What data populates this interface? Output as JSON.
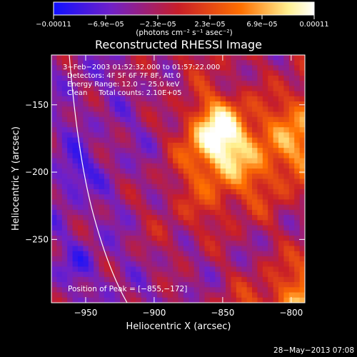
{
  "chart_data": {
    "type": "heatmap",
    "title": "Reconstructed RHESSI Image",
    "xlabel": "Heliocentric X (arcsec)",
    "ylabel": "Heliocentric Y (arcsec)",
    "xlim": [
      -975,
      -790
    ],
    "ylim": [
      -297,
      -113
    ],
    "x_ticks": [
      -950,
      -900,
      -850,
      -800
    ],
    "x_tick_labels": [
      "−950",
      "−900",
      "−850",
      "−800"
    ],
    "y_ticks": [
      -150,
      -200,
      -250
    ],
    "y_tick_labels": [
      "−150",
      "−200",
      "−250"
    ],
    "colorbar": {
      "range": [
        -0.00011,
        0.00011
      ],
      "tick_labels": [
        "−0.00011",
        "−6.9e−05",
        "−2.3e−05",
        "2.3e−05",
        "6.9e−05",
        "0.00011"
      ],
      "unit_label": "(photons cm⁻² s⁻¹ asec⁻²)",
      "colors": [
        "#1010ff",
        "#7020c8",
        "#c81e28",
        "#ff7000",
        "#fff090",
        "#ffffff"
      ]
    },
    "annotations": {
      "time_range": "3−Feb−2003 01:52:32.000 to 01:57:22.000",
      "detectors": "Detectors: 4F 5F 6F 7F 8F, Att 0",
      "energy_range": "Energy Range: 12.0 − 25.0 keV",
      "algorithm": "Clean     Total counts: 2.10E+05",
      "peak": "Position of Peak = [−855,−172]"
    },
    "peak_position": [
      -855,
      -172
    ],
    "grid": false,
    "limb": true
  },
  "footer": {
    "timestamp": "28−May−2013 07:08"
  }
}
